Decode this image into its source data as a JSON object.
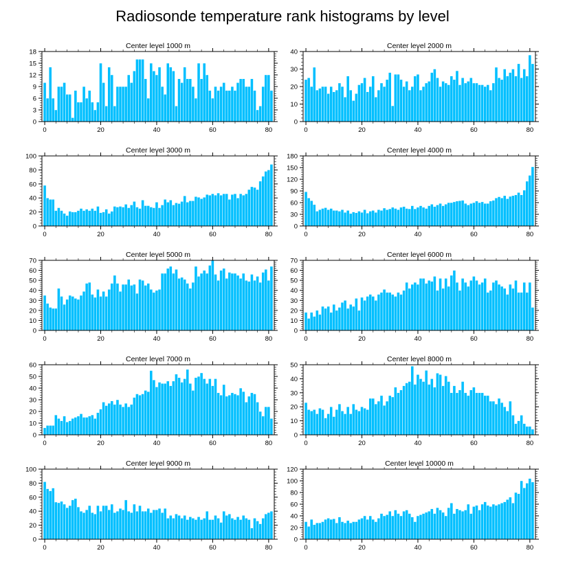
{
  "title": "Radiosonde temperature rank histograms by level",
  "chart_data": [
    {
      "type": "bar",
      "title": "Center level 1000 m",
      "x_ticks": [
        0,
        20,
        40,
        60,
        80
      ],
      "xlim": [
        -1,
        82
      ],
      "ylim": [
        0,
        18
      ],
      "y_ticks": [
        0,
        3,
        6,
        9,
        12,
        15,
        18
      ],
      "values": [
        10,
        6,
        14,
        6,
        3,
        9,
        9,
        10,
        7,
        7,
        1,
        8,
        5,
        5,
        9,
        6,
        8,
        5,
        3,
        5,
        15,
        10,
        4,
        14,
        12,
        4,
        9,
        9,
        9,
        9,
        12,
        10,
        13,
        16,
        16,
        16,
        11,
        6,
        15,
        13,
        12,
        14,
        9,
        7,
        15,
        14,
        13,
        4,
        11,
        10,
        14,
        11,
        11,
        9,
        6,
        15,
        11,
        15,
        12,
        8,
        6,
        9,
        8,
        9,
        10,
        8,
        8,
        9,
        8,
        10,
        11,
        11,
        9,
        9,
        11,
        8,
        3,
        4,
        9,
        12,
        12,
        8
      ]
    },
    {
      "type": "bar",
      "title": "Center level 2000 m",
      "x_ticks": [
        0,
        20,
        40,
        60,
        80
      ],
      "xlim": [
        -1,
        82
      ],
      "ylim": [
        0,
        40
      ],
      "y_ticks": [
        0,
        10,
        20,
        30,
        40
      ],
      "values": [
        24,
        25,
        20,
        31,
        18,
        19,
        20,
        20,
        16,
        20,
        17,
        18,
        22,
        20,
        14,
        26,
        18,
        12,
        16,
        21,
        22,
        25,
        17,
        20,
        26,
        14,
        18,
        22,
        20,
        24,
        28,
        9,
        27,
        27,
        24,
        20,
        23,
        18,
        20,
        26,
        27,
        18,
        20,
        22,
        23,
        28,
        30,
        25,
        20,
        23,
        22,
        21,
        26,
        24,
        29,
        21,
        25,
        22,
        23,
        25,
        22,
        22,
        21,
        21,
        20,
        21,
        18,
        22,
        31,
        25,
        24,
        30,
        26,
        28,
        30,
        26,
        33,
        25,
        30,
        26,
        38,
        33
      ]
    },
    {
      "type": "bar",
      "title": "Center level 3000 m",
      "x_ticks": [
        0,
        20,
        40,
        60,
        80
      ],
      "xlim": [
        -1,
        82
      ],
      "ylim": [
        0,
        100
      ],
      "y_ticks": [
        0,
        20,
        40,
        60,
        80,
        100
      ],
      "values": [
        58,
        40,
        38,
        38,
        22,
        26,
        22,
        18,
        15,
        21,
        20,
        20,
        22,
        25,
        22,
        24,
        22,
        25,
        22,
        28,
        19,
        20,
        24,
        18,
        21,
        28,
        27,
        28,
        27,
        31,
        26,
        30,
        35,
        27,
        25,
        37,
        29,
        29,
        27,
        26,
        34,
        26,
        30,
        38,
        34,
        37,
        30,
        33,
        32,
        35,
        43,
        34,
        36,
        36,
        42,
        41,
        39,
        41,
        45,
        44,
        46,
        44,
        47,
        44,
        46,
        46,
        38,
        45,
        46,
        40,
        46,
        44,
        46,
        52,
        56,
        55,
        52,
        64,
        71,
        78,
        80,
        88
      ]
    },
    {
      "type": "bar",
      "title": "Center level 4000 m",
      "x_ticks": [
        0,
        20,
        40,
        60,
        80
      ],
      "xlim": [
        -1,
        82
      ],
      "ylim": [
        0,
        180
      ],
      "y_ticks": [
        0,
        30,
        60,
        90,
        120,
        150,
        180
      ],
      "values": [
        88,
        72,
        65,
        55,
        38,
        42,
        45,
        47,
        42,
        45,
        40,
        40,
        38,
        42,
        35,
        40,
        32,
        36,
        34,
        38,
        35,
        42,
        33,
        38,
        40,
        35,
        42,
        40,
        46,
        42,
        44,
        48,
        45,
        42,
        48,
        50,
        45,
        44,
        52,
        44,
        48,
        52,
        48,
        45,
        52,
        56,
        50,
        54,
        58,
        52,
        56,
        60,
        60,
        62,
        64,
        65,
        66,
        58,
        54,
        58,
        60,
        64,
        60,
        62,
        58,
        58,
        64,
        66,
        72,
        75,
        72,
        78,
        70,
        76,
        78,
        80,
        86,
        80,
        92,
        115,
        130,
        152
      ]
    },
    {
      "type": "bar",
      "title": "Center level 5000 m",
      "x_ticks": [
        0,
        20,
        40,
        60,
        80
      ],
      "xlim": [
        -1,
        82
      ],
      "ylim": [
        0,
        70
      ],
      "y_ticks": [
        0,
        10,
        20,
        30,
        40,
        50,
        60,
        70
      ],
      "values": [
        35,
        27,
        23,
        22,
        22,
        42,
        34,
        26,
        31,
        35,
        34,
        32,
        31,
        35,
        39,
        47,
        48,
        36,
        33,
        41,
        34,
        39,
        34,
        41,
        47,
        55,
        47,
        39,
        46,
        46,
        51,
        45,
        46,
        37,
        51,
        50,
        45,
        47,
        41,
        38,
        40,
        41,
        57,
        57,
        62,
        64,
        57,
        61,
        52,
        53,
        51,
        47,
        42,
        48,
        64,
        54,
        57,
        60,
        57,
        65,
        70,
        56,
        50,
        60,
        62,
        52,
        58,
        57,
        57,
        55,
        52,
        57,
        50,
        49,
        56,
        50,
        54,
        48,
        58,
        61,
        50,
        64
      ]
    },
    {
      "type": "bar",
      "title": "Center level 6000 m",
      "x_ticks": [
        0,
        20,
        40,
        60,
        80
      ],
      "xlim": [
        -1,
        82
      ],
      "ylim": [
        0,
        70
      ],
      "y_ticks": [
        0,
        10,
        20,
        30,
        40,
        50,
        60,
        70
      ],
      "values": [
        18,
        12,
        18,
        14,
        20,
        16,
        24,
        22,
        24,
        18,
        26,
        20,
        23,
        28,
        30,
        22,
        26,
        24,
        32,
        20,
        33,
        30,
        34,
        36,
        34,
        30,
        36,
        38,
        41,
        38,
        38,
        36,
        34,
        38,
        36,
        40,
        48,
        42,
        46,
        48,
        46,
        52,
        52,
        47,
        50,
        49,
        54,
        40,
        52,
        42,
        52,
        44,
        55,
        60,
        48,
        40,
        52,
        48,
        44,
        50,
        54,
        50,
        46,
        48,
        52,
        38,
        40,
        48,
        50,
        46,
        44,
        42,
        36,
        46,
        42,
        50,
        38,
        38,
        48,
        38,
        48,
        23
      ]
    },
    {
      "type": "bar",
      "title": "Center level 7000 m",
      "x_ticks": [
        0,
        20,
        40,
        60,
        80
      ],
      "xlim": [
        -1,
        82
      ],
      "ylim": [
        0,
        60
      ],
      "y_ticks": [
        0,
        10,
        20,
        30,
        40,
        50,
        60
      ],
      "values": [
        6,
        8,
        8,
        8,
        17,
        14,
        12,
        16,
        11,
        12,
        14,
        15,
        16,
        18,
        15,
        15,
        16,
        17,
        14,
        19,
        22,
        28,
        25,
        27,
        29,
        26,
        30,
        26,
        24,
        27,
        24,
        26,
        32,
        35,
        34,
        35,
        38,
        37,
        55,
        47,
        41,
        45,
        44,
        44,
        46,
        42,
        46,
        52,
        49,
        45,
        48,
        56,
        44,
        38,
        49,
        50,
        53,
        48,
        44,
        48,
        42,
        48,
        36,
        34,
        43,
        33,
        34,
        36,
        35,
        34,
        40,
        37,
        28,
        33,
        36,
        35,
        28,
        20,
        16,
        24,
        24,
        14
      ]
    },
    {
      "type": "bar",
      "title": "Center level 8000 m",
      "x_ticks": [
        0,
        20,
        40,
        60,
        80
      ],
      "xlim": [
        -1,
        82
      ],
      "ylim": [
        0,
        50
      ],
      "y_ticks": [
        0,
        10,
        20,
        30,
        40,
        50
      ],
      "values": [
        23,
        18,
        17,
        18,
        15,
        19,
        18,
        12,
        15,
        20,
        13,
        18,
        22,
        17,
        15,
        20,
        15,
        22,
        18,
        17,
        20,
        19,
        18,
        26,
        26,
        22,
        24,
        28,
        21,
        24,
        28,
        27,
        34,
        30,
        32,
        35,
        37,
        38,
        49,
        36,
        43,
        40,
        38,
        46,
        36,
        40,
        34,
        44,
        43,
        35,
        42,
        38,
        30,
        35,
        30,
        32,
        38,
        30,
        28,
        32,
        34,
        30,
        30,
        30,
        28,
        28,
        24,
        24,
        22,
        26,
        23,
        20,
        17,
        24,
        14,
        8,
        10,
        14,
        8,
        6,
        6,
        4
      ]
    },
    {
      "type": "bar",
      "title": "Center level 9000 m",
      "x_ticks": [
        0,
        20,
        40,
        60,
        80
      ],
      "xlim": [
        -1,
        82
      ],
      "ylim": [
        0,
        100
      ],
      "y_ticks": [
        0,
        20,
        40,
        60,
        80,
        100
      ],
      "values": [
        82,
        72,
        69,
        73,
        53,
        52,
        54,
        50,
        45,
        48,
        56,
        58,
        46,
        40,
        38,
        42,
        48,
        38,
        36,
        48,
        40,
        48,
        48,
        42,
        50,
        38,
        40,
        44,
        42,
        56,
        40,
        38,
        50,
        40,
        48,
        40,
        40,
        44,
        38,
        42,
        42,
        44,
        38,
        44,
        30,
        34,
        30,
        36,
        34,
        30,
        34,
        28,
        32,
        30,
        28,
        32,
        28,
        30,
        40,
        28,
        28,
        34,
        30,
        24,
        40,
        34,
        36,
        30,
        28,
        32,
        28,
        34,
        30,
        28,
        16,
        30,
        26,
        22,
        30,
        36,
        38,
        40
      ]
    },
    {
      "type": "bar",
      "title": "Center level 10000 m",
      "x_ticks": [
        0,
        20,
        40,
        60,
        80
      ],
      "xlim": [
        -1,
        82
      ],
      "ylim": [
        0,
        120
      ],
      "y_ticks": [
        0,
        20,
        40,
        60,
        80,
        100,
        120
      ],
      "values": [
        30,
        22,
        34,
        25,
        28,
        28,
        30,
        34,
        36,
        34,
        35,
        28,
        38,
        30,
        28,
        32,
        28,
        30,
        30,
        34,
        36,
        40,
        34,
        40,
        34,
        30,
        36,
        44,
        40,
        42,
        48,
        40,
        50,
        44,
        40,
        48,
        50,
        44,
        38,
        30,
        40,
        42,
        44,
        46,
        48,
        52,
        44,
        54,
        50,
        46,
        40,
        54,
        62,
        44,
        52,
        50,
        48,
        50,
        60,
        44,
        56,
        58,
        50,
        60,
        64,
        58,
        56,
        60,
        58,
        60,
        62,
        64,
        68,
        72,
        62,
        80,
        78,
        100,
        88,
        96,
        104,
        98
      ]
    }
  ]
}
